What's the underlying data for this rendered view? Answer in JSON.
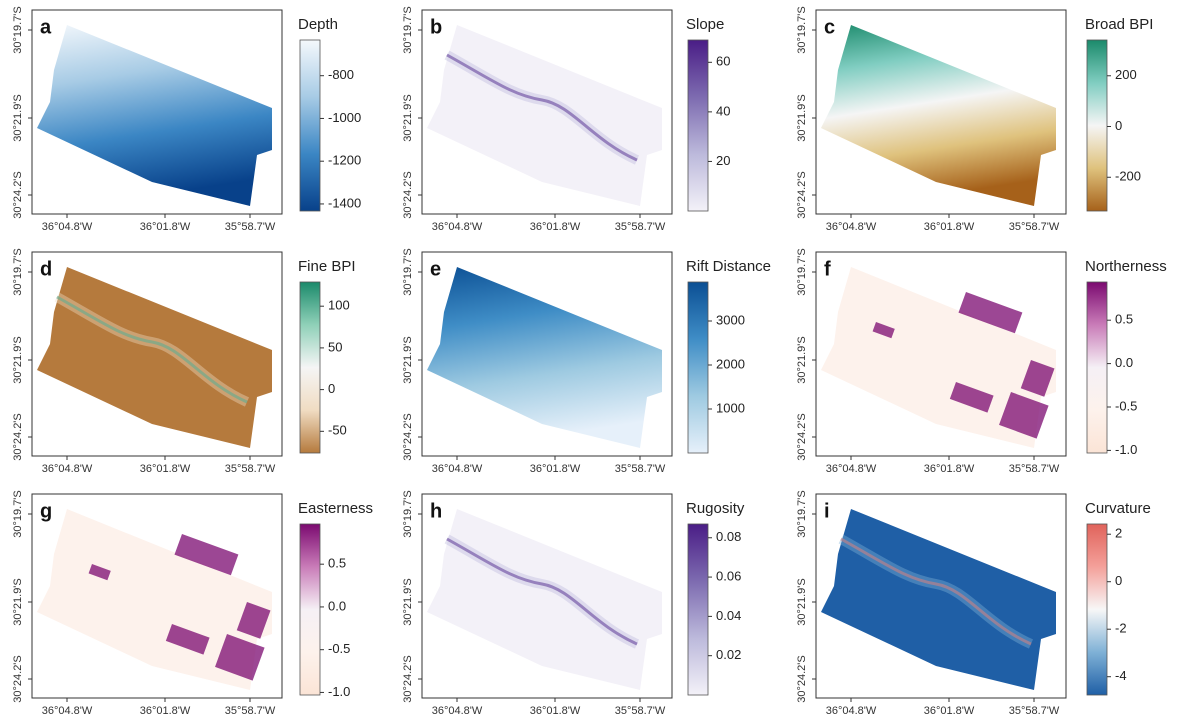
{
  "x_tick_labels": [
    "36°04.8'W",
    "36°01.8'W",
    "35°58.7'W"
  ],
  "y_tick_labels": [
    "30°19.7'S",
    "30°21.9'S",
    "30°24.2'S"
  ],
  "panels": [
    {
      "letter": "a",
      "title": "Depth",
      "range": [
        -1433,
        -633
      ],
      "ticks": [
        -800,
        -1000,
        -1200,
        -1400
      ],
      "colors": [
        "#08418a",
        "#3b86c4",
        "#a7cbe5",
        "#f4f8fc"
      ]
    },
    {
      "letter": "b",
      "title": "Slope",
      "range": [
        0,
        69
      ],
      "ticks": [
        60,
        40,
        20
      ],
      "colors": [
        "#f3f1f8",
        "#bcb9db",
        "#7d6bb0",
        "#4a1d86"
      ]
    },
    {
      "letter": "c",
      "title": "Broad BPI",
      "range": [
        -333,
        341
      ],
      "ticks": [
        200,
        0,
        -200
      ],
      "colors": [
        "#a6611a",
        "#dfc27d",
        "#f5f5f5",
        "#80cdc1",
        "#1b8a6b"
      ]
    },
    {
      "letter": "d",
      "title": "Fine BPI",
      "range": [
        -76,
        129
      ],
      "ticks": [
        100,
        50,
        0,
        -50
      ],
      "colors": [
        "#b57a3d",
        "#f0dcc2",
        "#f5f5f5",
        "#8fd0b8",
        "#1b8a6b"
      ]
    },
    {
      "letter": "e",
      "title": "Rift Distance",
      "range": [
        0,
        3886
      ],
      "ticks": [
        3000,
        2000,
        1000
      ],
      "colors": [
        "#e6f0fa",
        "#9ecae1",
        "#3f8dc6",
        "#0b4f94"
      ]
    },
    {
      "letter": "f",
      "title": "Northerness",
      "range": [
        -1.03,
        0.94
      ],
      "ticks": [
        0.5,
        {
          "value": 0,
          "label": "0.0"
        },
        -0.5,
        {
          "value": -1,
          "label": "-1.0"
        }
      ],
      "colors": [
        "#fbe4d6",
        "#fdf2ec",
        "#f5f0f5",
        "#c97cb8",
        "#7b0a70"
      ]
    },
    {
      "letter": "g",
      "title": "Easterness",
      "range": [
        -1.03,
        0.97
      ],
      "ticks": [
        0.5,
        {
          "value": 0,
          "label": "0.0"
        },
        -0.5,
        {
          "value": -1,
          "label": "-1.0"
        }
      ],
      "colors": [
        "#fbe4d6",
        "#fdf2ec",
        "#f5f0f5",
        "#c97cb8",
        "#7b0a70"
      ]
    },
    {
      "letter": "h",
      "title": "Rugosity",
      "range": [
        0,
        0.087
      ],
      "ticks": [
        0.08,
        0.06,
        0.04,
        0.02
      ],
      "colors": [
        "#f3f1f8",
        "#bcb9db",
        "#7d6bb0",
        "#4a1d86"
      ]
    },
    {
      "letter": "i",
      "title": "Curvature",
      "range": [
        -4.77,
        2.43
      ],
      "ticks": [
        2,
        0,
        -2,
        -4
      ],
      "colors": [
        "#1f5fa6",
        "#7fb1d6",
        "#f7f7f7",
        "#f4a09a",
        "#e0635b"
      ]
    }
  ]
}
